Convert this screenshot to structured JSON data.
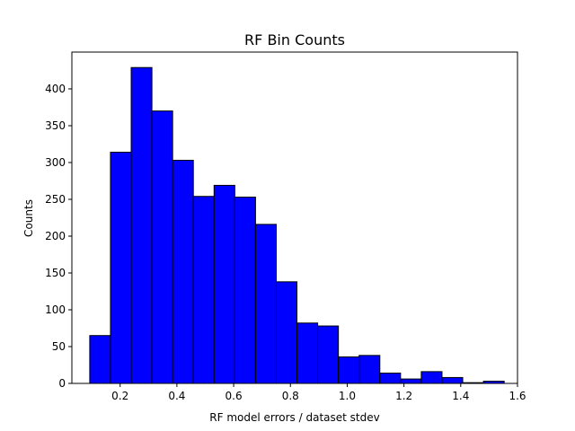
{
  "chart_data": {
    "type": "bar",
    "subtype": "histogram",
    "title": "RF Bin Counts",
    "xlabel": "RF model errors / dataset stdev",
    "ylabel": "Counts",
    "xlim": [
      0.03,
      1.6
    ],
    "ylim": [
      0,
      450
    ],
    "xticks": [
      "0.2",
      "0.4",
      "0.6",
      "0.8",
      "1.0",
      "1.2",
      "1.4",
      "1.6"
    ],
    "yticks": [
      "0",
      "50",
      "100",
      "150",
      "200",
      "250",
      "300",
      "350",
      "400"
    ],
    "bar_color": "#0000ff",
    "edge_color": "#000000",
    "grid": false,
    "bins": [
      {
        "x0": 0.093,
        "x1": 0.166,
        "count": 65
      },
      {
        "x0": 0.166,
        "x1": 0.239,
        "count": 314
      },
      {
        "x0": 0.239,
        "x1": 0.312,
        "count": 429
      },
      {
        "x0": 0.312,
        "x1": 0.385,
        "count": 370
      },
      {
        "x0": 0.385,
        "x1": 0.458,
        "count": 303
      },
      {
        "x0": 0.458,
        "x1": 0.531,
        "count": 254
      },
      {
        "x0": 0.531,
        "x1": 0.604,
        "count": 269
      },
      {
        "x0": 0.604,
        "x1": 0.677,
        "count": 253
      },
      {
        "x0": 0.677,
        "x1": 0.75,
        "count": 216
      },
      {
        "x0": 0.75,
        "x1": 0.823,
        "count": 138
      },
      {
        "x0": 0.823,
        "x1": 0.896,
        "count": 82
      },
      {
        "x0": 0.896,
        "x1": 0.969,
        "count": 78
      },
      {
        "x0": 0.969,
        "x1": 1.042,
        "count": 36
      },
      {
        "x0": 1.042,
        "x1": 1.115,
        "count": 38
      },
      {
        "x0": 1.115,
        "x1": 1.188,
        "count": 14
      },
      {
        "x0": 1.188,
        "x1": 1.261,
        "count": 6
      },
      {
        "x0": 1.261,
        "x1": 1.334,
        "count": 16
      },
      {
        "x0": 1.334,
        "x1": 1.407,
        "count": 8
      },
      {
        "x0": 1.407,
        "x1": 1.48,
        "count": 1
      },
      {
        "x0": 1.48,
        "x1": 1.553,
        "count": 3
      }
    ]
  }
}
